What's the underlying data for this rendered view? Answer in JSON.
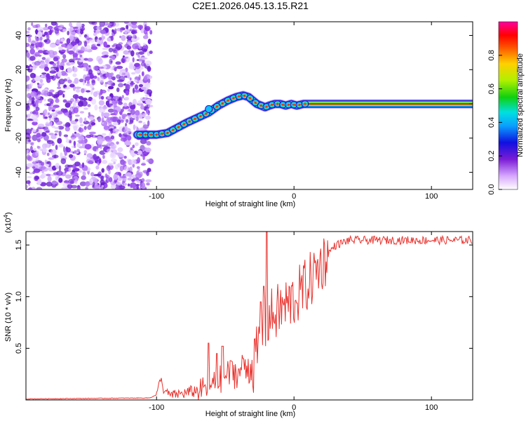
{
  "title": "C2E1.2026.045.13.15.R21",
  "chart_data": [
    {
      "type": "heatmap",
      "name": "spectrogram",
      "xlabel": "Height of straight line (km)",
      "ylabel": "Frequency (Hz)",
      "xlim": [
        -195,
        130
      ],
      "ylim": [
        -50,
        48
      ],
      "xticks": [
        -100,
        0,
        100
      ],
      "yticks": [
        -40,
        -20,
        0,
        20,
        40
      ],
      "noise_region_x": [
        -195,
        -108
      ],
      "track": {
        "x": [
          -114,
          -100,
          -92,
          -85,
          -78,
          -70,
          -62,
          -55,
          -48,
          -42,
          -37,
          -33,
          -30,
          -27,
          -24,
          -21,
          -18,
          -14,
          -10,
          -6,
          -2,
          2,
          7,
          10,
          130
        ],
        "y": [
          -18,
          -18,
          -17,
          -14,
          -11,
          -8,
          -5,
          -1,
          2,
          4,
          5,
          4,
          2,
          0,
          -1,
          -2,
          -1,
          0,
          0,
          -1,
          0,
          -1,
          0,
          0,
          0
        ]
      },
      "colorbar": {
        "label": "Normalized spectral amplitude",
        "ticks": [
          "0.0",
          "0.2",
          "0.4",
          "0.6",
          "0.8"
        ],
        "range": [
          0,
          1
        ]
      }
    },
    {
      "type": "line",
      "name": "snr",
      "xlabel": "Height of straight line (km)",
      "ylabel": "SNR (10 * v/v)",
      "scale_label": "(x10",
      "scale_exp": "4",
      "scale_close": ")",
      "xlim": [
        -195,
        130
      ],
      "ylim": [
        0,
        1.63
      ],
      "xticks": [
        -100,
        0,
        100
      ],
      "yticks": [
        "0.5",
        "1.0",
        "1.5"
      ],
      "yticks_values": [
        0.5,
        1.0,
        1.5
      ],
      "series_color": "#e8322d",
      "envelope": {
        "x": [
          -195,
          -105,
          -100,
          -97,
          -95,
          -90,
          -80,
          -70,
          -60,
          -50,
          -40,
          -30,
          -25,
          -20,
          -15,
          -10,
          -5,
          0,
          10,
          20,
          30,
          40,
          60,
          80,
          100,
          120,
          130
        ],
        "y": [
          0.01,
          0.02,
          0.05,
          0.22,
          0.1,
          0.05,
          0.07,
          0.1,
          0.15,
          0.25,
          0.3,
          0.35,
          0.55,
          0.8,
          0.85,
          0.9,
          0.95,
          1.0,
          1.15,
          1.35,
          1.5,
          1.55,
          1.55,
          1.55,
          1.55,
          1.55,
          1.55
        ]
      },
      "spikes": {
        "x": [
          -62,
          -56,
          -52,
          -46,
          -40,
          -37,
          -24,
          -22,
          -20
        ],
        "y": [
          0.55,
          0.45,
          0.52,
          0.38,
          0.3,
          0.4,
          0.95,
          1.1,
          1.63
        ]
      }
    }
  ]
}
